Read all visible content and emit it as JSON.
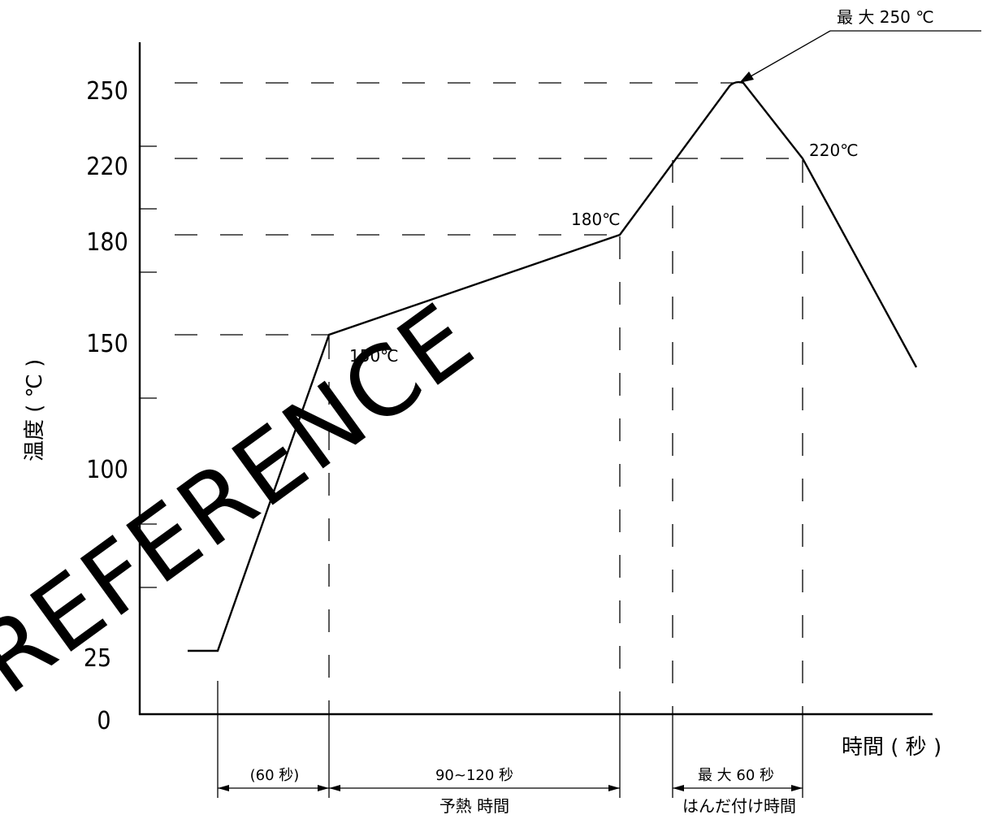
{
  "chart_data": {
    "type": "line",
    "title": "",
    "xlabel": "時間 ( 秒 )",
    "ylabel": "温度 ( ℃ )",
    "y_ticks": [
      "0",
      "25",
      "100",
      "150",
      "180",
      "220",
      "250"
    ],
    "ylim": [
      0,
      250
    ],
    "series": [
      {
        "temps": [
          25,
          25,
          150,
          180,
          220,
          250,
          250,
          220,
          140
        ]
      }
    ],
    "point_labels": [
      "150℃",
      "180℃",
      "220℃"
    ],
    "peak_callout": "最 大 250 ℃",
    "intervals": [
      {
        "top_label": "(60 秒)",
        "bottom_label": ""
      },
      {
        "top_label": "90~120 秒",
        "bottom_label": "予熱 時間"
      },
      {
        "top_label": "最 大 60 秒",
        "bottom_label": "はんだ付け時間"
      }
    ],
    "watermark": "REFERENCE",
    "grid": false
  }
}
